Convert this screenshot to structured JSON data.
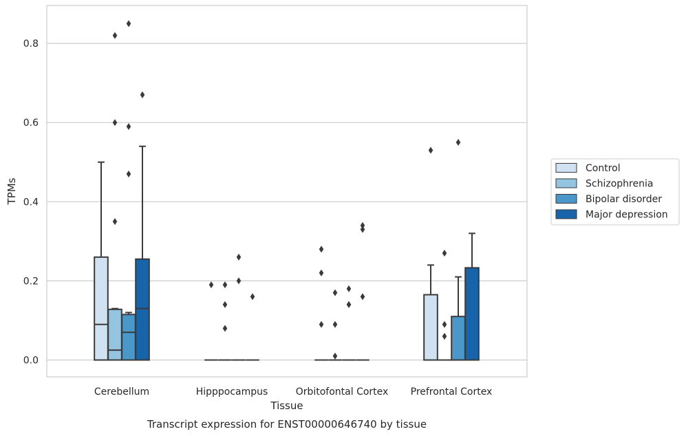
{
  "chart_data": {
    "type": "boxplot",
    "xlabel": "Tissue",
    "ylabel": "TPMs",
    "caption": "Transcript expression for ENST00000646740 by tissue",
    "ylim": [
      -0.04,
      0.89
    ],
    "yticks": [
      0.0,
      0.2,
      0.4,
      0.6,
      0.8
    ],
    "ytick_labels": [
      "0.0",
      "0.2",
      "0.4",
      "0.6",
      "0.8"
    ],
    "grid": "horizontal",
    "legend_position": "right",
    "categories": [
      "Cerebellum",
      "Hipppocampus",
      "Orbitofontal Cortex",
      "Prefrontal Cortex"
    ],
    "series": [
      {
        "name": "Control",
        "color": "#d0e1f2",
        "boxes": [
          {
            "q1": 0.0,
            "median": 0.09,
            "q3": 0.26,
            "whisker_low": 0.0,
            "whisker_high": 0.5,
            "outliers": []
          },
          {
            "q1": 0.0,
            "median": 0.0,
            "q3": 0.0,
            "whisker_low": 0.0,
            "whisker_high": 0.0,
            "outliers": [
              0.19
            ]
          },
          {
            "q1": 0.0,
            "median": 0.0,
            "q3": 0.0,
            "whisker_low": 0.0,
            "whisker_high": 0.0,
            "outliers": [
              0.28,
              0.22,
              0.09
            ]
          },
          {
            "q1": 0.0,
            "median": 0.0,
            "q3": 0.165,
            "whisker_low": 0.0,
            "whisker_high": 0.24,
            "outliers": [
              0.53
            ]
          }
        ]
      },
      {
        "name": "Schizophrenia",
        "color": "#94c4df",
        "boxes": [
          {
            "q1": 0.0,
            "median": 0.025,
            "q3": 0.128,
            "whisker_low": 0.0,
            "whisker_high": 0.13,
            "outliers": [
              0.82,
              0.6,
              0.35
            ]
          },
          {
            "q1": 0.0,
            "median": 0.0,
            "q3": 0.0,
            "whisker_low": 0.0,
            "whisker_high": 0.0,
            "outliers": [
              0.19,
              0.14,
              0.08
            ]
          },
          {
            "q1": 0.0,
            "median": 0.0,
            "q3": 0.0,
            "whisker_low": 0.0,
            "whisker_high": 0.0,
            "outliers": [
              0.17,
              0.09,
              0.01
            ]
          },
          {
            "q1": 0.0,
            "median": 0.0,
            "q3": 0.0,
            "whisker_low": 0.0,
            "whisker_high": 0.0,
            "outliers": [
              0.27,
              0.09,
              0.06
            ]
          }
        ]
      },
      {
        "name": "Bipolar disorder",
        "color": "#4a98c9",
        "boxes": [
          {
            "q1": 0.0,
            "median": 0.07,
            "q3": 0.115,
            "whisker_low": 0.0,
            "whisker_high": 0.12,
            "outliers": [
              0.85,
              0.59,
              0.47
            ]
          },
          {
            "q1": 0.0,
            "median": 0.0,
            "q3": 0.0,
            "whisker_low": 0.0,
            "whisker_high": 0.0,
            "outliers": [
              0.26,
              0.2
            ]
          },
          {
            "q1": 0.0,
            "median": 0.0,
            "q3": 0.0,
            "whisker_low": 0.0,
            "whisker_high": 0.0,
            "outliers": [
              0.18,
              0.14,
              0.14
            ]
          },
          {
            "q1": 0.0,
            "median": 0.0,
            "q3": 0.11,
            "whisker_low": 0.0,
            "whisker_high": 0.21,
            "outliers": [
              0.55
            ]
          }
        ]
      },
      {
        "name": "Major depression",
        "color": "#1764ab",
        "boxes": [
          {
            "q1": 0.0,
            "median": 0.13,
            "q3": 0.255,
            "whisker_low": 0.0,
            "whisker_high": 0.54,
            "outliers": [
              0.67
            ]
          },
          {
            "q1": 0.0,
            "median": 0.0,
            "q3": 0.0,
            "whisker_low": 0.0,
            "whisker_high": 0.0,
            "outliers": [
              0.16
            ]
          },
          {
            "q1": 0.0,
            "median": 0.0,
            "q3": 0.0,
            "whisker_low": 0.0,
            "whisker_high": 0.0,
            "outliers": [
              0.34,
              0.33,
              0.16
            ]
          },
          {
            "q1": 0.0,
            "median": 0.0,
            "q3": 0.233,
            "whisker_low": 0.0,
            "whisker_high": 0.32,
            "outliers": []
          }
        ]
      }
    ]
  }
}
